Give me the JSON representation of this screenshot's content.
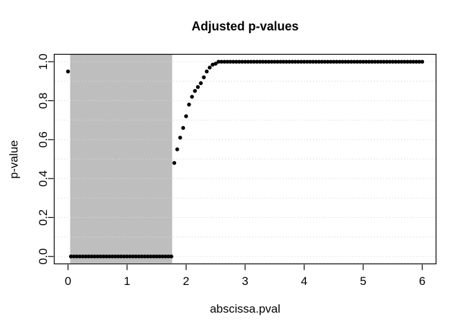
{
  "chart_data": {
    "type": "scatter",
    "title": "Adjusted p-values",
    "xlabel": "abscissa.pval",
    "ylabel": "p-value",
    "xlim": [
      -0.24,
      6.24
    ],
    "ylim": [
      -0.04,
      1.04
    ],
    "x_ticks": {
      "values": [
        0,
        1,
        2,
        3,
        4,
        5,
        6
      ],
      "labels": [
        "0",
        "1",
        "2",
        "3",
        "4",
        "5",
        "6"
      ]
    },
    "y_ticks": {
      "values": [
        0,
        0.2,
        0.4,
        0.6,
        0.8,
        1
      ],
      "labels": [
        "0.0",
        "0.2",
        "0.4",
        "0.6",
        "0.8",
        "1.0"
      ]
    },
    "grid": {
      "orientation": "horizontal",
      "style": "dotted",
      "color": "#d9d9d9",
      "lines": [
        0,
        0.1,
        0.2,
        0.3,
        0.4,
        0.5,
        0.6,
        0.7,
        0.8,
        0.9,
        1
      ]
    },
    "legend": "none",
    "shaded_region": {
      "x_from": 0.05,
      "x_to": 1.75,
      "full_height": true,
      "color": "#bebebe"
    },
    "point_color": "#000000",
    "point_shape": "filled-circle",
    "x_step": 0.05,
    "points": [
      [
        0,
        0.95
      ],
      [
        0.05,
        0
      ],
      [
        0.1,
        0
      ],
      [
        0.15,
        0
      ],
      [
        0.2,
        0
      ],
      [
        0.25,
        0
      ],
      [
        0.3,
        0
      ],
      [
        0.35,
        0
      ],
      [
        0.4,
        0
      ],
      [
        0.45,
        0
      ],
      [
        0.5,
        0
      ],
      [
        0.55,
        0
      ],
      [
        0.6,
        0
      ],
      [
        0.65,
        0
      ],
      [
        0.7,
        0
      ],
      [
        0.75,
        0
      ],
      [
        0.8,
        0
      ],
      [
        0.85,
        0
      ],
      [
        0.9,
        0
      ],
      [
        0.95,
        0
      ],
      [
        1,
        0
      ],
      [
        1.05,
        0
      ],
      [
        1.1,
        0
      ],
      [
        1.15,
        0
      ],
      [
        1.2,
        0
      ],
      [
        1.25,
        0
      ],
      [
        1.3,
        0
      ],
      [
        1.35,
        0
      ],
      [
        1.4,
        0
      ],
      [
        1.45,
        0
      ],
      [
        1.5,
        0
      ],
      [
        1.55,
        0
      ],
      [
        1.6,
        0
      ],
      [
        1.65,
        0
      ],
      [
        1.7,
        0
      ],
      [
        1.75,
        0
      ],
      [
        1.8,
        0.48
      ],
      [
        1.85,
        0.55
      ],
      [
        1.9,
        0.61
      ],
      [
        1.95,
        0.66
      ],
      [
        2,
        0.72
      ],
      [
        2.05,
        0.78
      ],
      [
        2.1,
        0.82
      ],
      [
        2.15,
        0.85
      ],
      [
        2.2,
        0.87
      ],
      [
        2.25,
        0.89
      ],
      [
        2.3,
        0.92
      ],
      [
        2.35,
        0.95
      ],
      [
        2.4,
        0.97
      ],
      [
        2.45,
        0.985
      ],
      [
        2.5,
        0.99
      ],
      [
        2.55,
        1
      ],
      [
        2.6,
        1
      ],
      [
        2.65,
        1
      ],
      [
        2.7,
        1
      ],
      [
        2.75,
        1
      ],
      [
        2.8,
        1
      ],
      [
        2.85,
        1
      ],
      [
        2.9,
        1
      ],
      [
        2.95,
        1
      ],
      [
        3,
        1
      ],
      [
        3.05,
        1
      ],
      [
        3.1,
        1
      ],
      [
        3.15,
        1
      ],
      [
        3.2,
        1
      ],
      [
        3.25,
        1
      ],
      [
        3.3,
        1
      ],
      [
        3.35,
        1
      ],
      [
        3.4,
        1
      ],
      [
        3.45,
        1
      ],
      [
        3.5,
        1
      ],
      [
        3.55,
        1
      ],
      [
        3.6,
        1
      ],
      [
        3.65,
        1
      ],
      [
        3.7,
        1
      ],
      [
        3.75,
        1
      ],
      [
        3.8,
        1
      ],
      [
        3.85,
        1
      ],
      [
        3.9,
        1
      ],
      [
        3.95,
        1
      ],
      [
        4,
        1
      ],
      [
        4.05,
        1
      ],
      [
        4.1,
        1
      ],
      [
        4.15,
        1
      ],
      [
        4.2,
        1
      ],
      [
        4.25,
        1
      ],
      [
        4.3,
        1
      ],
      [
        4.35,
        1
      ],
      [
        4.4,
        1
      ],
      [
        4.45,
        1
      ],
      [
        4.5,
        1
      ],
      [
        4.55,
        1
      ],
      [
        4.6,
        1
      ],
      [
        4.65,
        1
      ],
      [
        4.7,
        1
      ],
      [
        4.75,
        1
      ],
      [
        4.8,
        1
      ],
      [
        4.85,
        1
      ],
      [
        4.9,
        1
      ],
      [
        4.95,
        1
      ],
      [
        5,
        1
      ],
      [
        5.05,
        1
      ],
      [
        5.1,
        1
      ],
      [
        5.15,
        1
      ],
      [
        5.2,
        1
      ],
      [
        5.25,
        1
      ],
      [
        5.3,
        1
      ],
      [
        5.35,
        1
      ],
      [
        5.4,
        1
      ],
      [
        5.45,
        1
      ],
      [
        5.5,
        1
      ],
      [
        5.55,
        1
      ],
      [
        5.6,
        1
      ],
      [
        5.65,
        1
      ],
      [
        5.7,
        1
      ],
      [
        5.75,
        1
      ],
      [
        5.8,
        1
      ],
      [
        5.85,
        1
      ],
      [
        5.9,
        1
      ],
      [
        5.95,
        1
      ],
      [
        6,
        1
      ]
    ]
  },
  "colors": {
    "background": "#ffffff",
    "axis": "#000000"
  }
}
